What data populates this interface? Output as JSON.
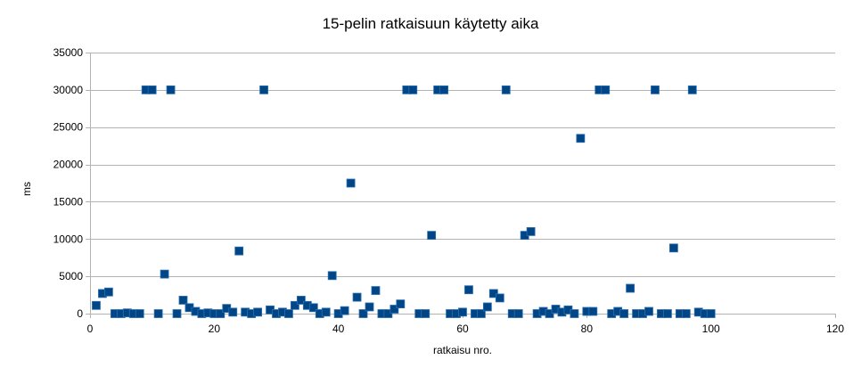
{
  "chart_data": {
    "type": "scatter",
    "title": "15-pelin ratkaisuun käytetty aika",
    "xlabel": "ratkaisu nro.",
    "ylabel": "ms",
    "xlim": [
      0,
      120
    ],
    "ylim": [
      0,
      35000
    ],
    "xticks": [
      0,
      20,
      40,
      60,
      80,
      100,
      120
    ],
    "yticks": [
      0,
      5000,
      10000,
      15000,
      20000,
      25000,
      30000,
      35000
    ],
    "grid": "horizontal",
    "marker_color": "#004586",
    "series": [
      {
        "x": [
          1,
          2,
          3,
          4,
          5,
          6,
          7,
          8,
          9,
          10,
          11,
          12,
          13,
          14,
          15,
          16,
          17,
          18,
          19,
          20,
          21,
          22,
          23,
          24,
          25,
          26,
          27,
          28,
          29,
          30,
          31,
          32,
          33,
          34,
          35,
          36,
          37,
          38,
          39,
          40,
          41,
          42,
          43,
          44,
          45,
          46,
          47,
          48,
          49,
          50,
          51,
          52,
          53,
          54,
          55,
          56,
          57,
          58,
          59,
          60,
          61,
          62,
          63,
          64,
          65,
          66,
          67,
          68,
          69,
          70,
          71,
          72,
          73,
          74,
          75,
          76,
          77,
          78,
          79,
          80,
          81,
          82,
          83,
          84,
          85,
          86,
          87,
          88,
          89,
          90,
          91,
          92,
          93,
          94,
          95,
          96,
          97,
          98,
          99,
          100
        ],
        "y": [
          1100,
          2700,
          2900,
          0,
          0,
          100,
          0,
          0,
          30000,
          30000,
          0,
          5300,
          30000,
          0,
          1800,
          800,
          300,
          0,
          100,
          0,
          0,
          700,
          200,
          8400,
          200,
          0,
          200,
          30000,
          500,
          0,
          200,
          0,
          1100,
          1800,
          1100,
          800,
          0,
          200,
          5100,
          0,
          400,
          17500,
          2200,
          0,
          900,
          3100,
          0,
          0,
          600,
          1300,
          30000,
          30000,
          0,
          0,
          10500,
          30000,
          30000,
          0,
          0,
          200,
          3200,
          0,
          0,
          900,
          2700,
          2100,
          30000,
          0,
          0,
          10500,
          11000,
          0,
          300,
          0,
          600,
          200,
          500,
          0,
          23500,
          300,
          300,
          30000,
          30000,
          0,
          300,
          0,
          3400,
          0,
          0,
          300,
          30000,
          0,
          0,
          8800,
          0,
          0,
          30000,
          200,
          0,
          0
        ]
      }
    ]
  }
}
